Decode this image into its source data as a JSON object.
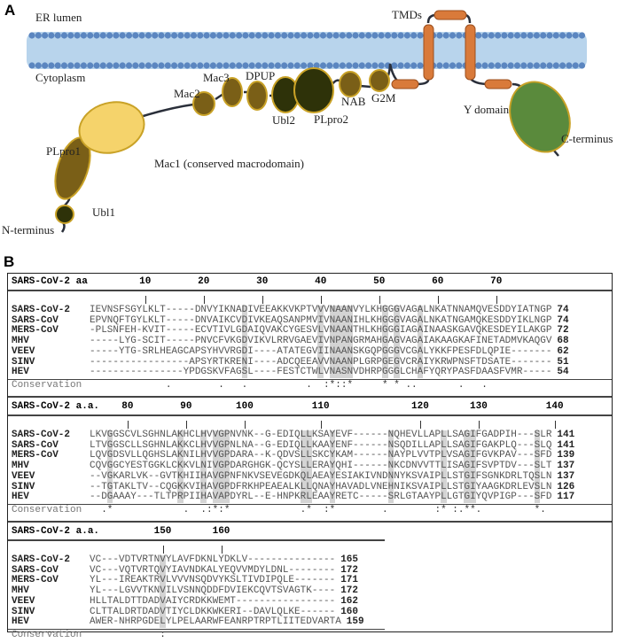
{
  "panel_a": {
    "label": "A",
    "er_lumen": "ER lumen",
    "cytoplasm": "Cytoplasm",
    "tmds": "TMDs",
    "domains": {
      "ubl1": "Ubl1",
      "plpro1": "PLpro1",
      "mac1": "Mac1 (conserved macrodomain)",
      "mac2": "Mac2",
      "mac3": "Mac3",
      "dpup": "DPUP",
      "ubl2": "Ubl2",
      "plpro2": "PLpro2",
      "nab": "NAB",
      "g2m": "G2M",
      "y_domain": "Y domain"
    },
    "n_terminus": "N-terminus",
    "c_terminus": "C-terminus",
    "colors": {
      "membrane": "#b8d4ec",
      "bead": "#5b86c0",
      "tmd": "#d97a3a",
      "light": "#f5d36b",
      "mid": "#7a5f17",
      "dark": "#2e3209",
      "ydomain": "#5a8a3c",
      "outline": "#c9a227"
    }
  },
  "panel_b": {
    "label": "B",
    "blocks": [
      {
        "header": "SARS-CoV-2 aa",
        "ticks": [
          "10",
          "20",
          "30",
          "40",
          "50",
          "60",
          "70"
        ],
        "rows": [
          {
            "name": "SARS-CoV-2",
            "seq": "IEVNSFSGYLKLT-----DNVYIKNADIVEEAKKVKPTVVVNAANVYLKHGGGVAGALNKATNNAMQVESDDYIATNGP",
            "len": "74"
          },
          {
            "name": "SARS-CoV",
            "seq": "EPVNQFTGYLKLT-----DNVAIKCVDIVKEAQSANPMVIVNAANIHLKHGGGVAGALNKATNGAMQKESDDYIKLNGP",
            "len": "74"
          },
          {
            "name": "MERS-CoV",
            "seq": "-PLSNFEH-KVIT-----ECVTIVLGDAIQVAKCYGESVLVNAANTHLKHGGGIAGAINAASKGAVQKESDEYILAKGP",
            "len": "72"
          },
          {
            "name": "MHV",
            "seq": "-----LYG-SCIT-----PNVCFVKGDVIKVLRRVGAEVIVNPANGRMAHGAGVAGAIAKAAGKAFINETADMVKAQGV",
            "len": "68"
          },
          {
            "name": "VEEV",
            "seq": "-----YTG-SRLHEAGCAPSYHVVRGDI----ATATEGVIINAANSKGQPGGGVCGALYKKFPESFDLQPIE-------",
            "len": "62"
          },
          {
            "name": "SINV",
            "seq": "-----------------APSYRTKRENI----ADCQEEAVVNAANPLGRPGEGVCRAIYKRWPNSFTDSATE-------",
            "len": "51"
          },
          {
            "name": "HEV",
            "seq": "----------------YPDGSKVFAGSL----FESTCTWLVNASNVDHRPGGGLCHAFYQRYPASFDAASFVMR-----",
            "len": "54"
          }
        ],
        "conservation_label": "Conservation",
        "conservation": "             .        .   .          .  :*::*     * * ..       .   .            "
      },
      {
        "header": "SARS-CoV-2 a.a.",
        "ticks": [
          "80",
          "90",
          "100",
          "110",
          "120",
          "130",
          "140"
        ],
        "rows": [
          {
            "name": "SARS-CoV-2",
            "seq": "LKVGGSCVLSGHNLAKHCLHVVGPNVNK--G-EDIQLLKSAYEVF------NQHEVLLAPLLSAGIFGADPIH---SLR",
            "len": "141"
          },
          {
            "name": "SARS-CoV",
            "seq": "LTVGGSCLLSGHNLAKKCLHVVGPNLNA--G-EDIQLLKAAYENF------NSQDILLAPLLSAGIFGAKPLQ---SLQ",
            "len": "141"
          },
          {
            "name": "MERS-CoV",
            "seq": "LQVGDSVLLQGHSLAKNILHVVGPDARA--K-QDVSLLSKCYKAM------NAYPLVVTPLVSAGIFGVKPAV---SFD",
            "len": "139"
          },
          {
            "name": "MHV",
            "seq": "CQVGGCYESTGGKLCKKVLNIVGPDARGHGK-QCYSLLERAYQHI------NKCDNVVTTLISAGIFSVPTDV---SLT",
            "len": "137"
          },
          {
            "name": "VEEV",
            "seq": "--VGKARLVK--GVTKHIIHAVGPNFNKVSEVEGDKQLAEAYESIAKIVNDNNYKSVAIPLLSTGIFSGNKDRLTQSLN",
            "len": "137"
          },
          {
            "name": "SINV",
            "seq": "--TGTAKLTV--CQGKKVIHAVGPDFRKHPEAEALKLLQNAYHAVADLVNEHNIKSVAIPLLSTGIYAAGKDRLEVSLN",
            "len": "126"
          },
          {
            "name": "HEV",
            "seq": "--DGAAAY---TLTPRPIIHAVAPDYRL--E-HNPKRLEAAYRETC-----SRLGTAAYPLLGTGIYQVPIGP---SFD",
            "len": "117"
          }
        ],
        "conservation_label": "Conservation",
        "conservation": "  .*            .  .:*:*            .*  :*        .        :* :.**.         *.  "
      },
      {
        "header": "SARS-CoV-2 a.a.",
        "ticks": [
          "150",
          "160"
        ],
        "rows": [
          {
            "name": "SARS-CoV-2",
            "seq": "VC---VDTVRTNVYLAVFDKNLYDKLV---------------",
            "len": "165"
          },
          {
            "name": "SARS-CoV",
            "seq": "VC---VQTVRTQVYIAVNDKALYEQVVMDYLDNL--------",
            "len": "172"
          },
          {
            "name": "MERS-CoV",
            "seq": "YL---IREAKTRVLVVVNSQDVYKSLTIVDIPQLE-------",
            "len": "171"
          },
          {
            "name": "MHV",
            "seq": "YL---LGVVTKNVILVSNNQDDFDVIEKCQVTSVAGTK----",
            "len": "172"
          },
          {
            "name": "VEEV",
            "seq": "HLLTALDTTDADVAIYCRDKKWEMT-----------------",
            "len": "162"
          },
          {
            "name": "SINV",
            "seq": "CLTTALDRTDADVTIYCLDKKWKERI--DAVLQLKE------",
            "len": "160"
          },
          {
            "name": "HEV",
            "seq": "AWER-NHRPGDELYLPELAARWFEANRPTRPTLIITEDVARTA",
            "len": "159"
          }
        ],
        "conservation_label": "Conservation",
        "conservation": "            :                              "
      }
    ]
  }
}
